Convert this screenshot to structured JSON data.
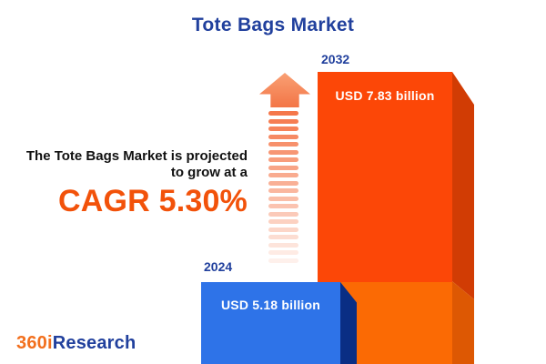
{
  "title": "Tote Bags Market",
  "projection": {
    "line1": "The Tote Bags Market is projected",
    "line2": "to grow at a",
    "cagr": "CAGR 5.30%"
  },
  "bars": [
    {
      "year": "2024",
      "value": "USD 5.18 billion"
    },
    {
      "year": "2032",
      "value": "USD 7.83 billion"
    }
  ],
  "logo": {
    "prefix": "360i",
    "suffix": "Research"
  },
  "arrow": {
    "stripe_count": 20
  },
  "colors": {
    "title_navy": "#21409d",
    "text_dark": "#111111",
    "cagr_orange": "#f2520a",
    "bar_2024": "#2e73e8",
    "bar_2024_side": "#0a2e84",
    "bar_2032_top": "#fc4707",
    "bar_2032_top_side": "#d13c04",
    "bar_2032_bottom": "#fb6a04",
    "bar_2032_bottom_side": "#dd5803",
    "arrow": "#f5774a",
    "logo_orange": "#f26f1d"
  },
  "chart_data": {
    "type": "bar",
    "title": "Tote Bags Market",
    "categories": [
      "2024",
      "2032"
    ],
    "values": [
      5.18,
      7.83
    ],
    "unit": "USD billion",
    "data_labels": [
      "USD 5.18 billion",
      "USD 7.83 billion"
    ],
    "cagr_percent": 5.3,
    "annotation": "The Tote Bags Market is projected to grow at a CAGR 5.30%",
    "legend_position": "none",
    "grid": false,
    "axes_shown": false
  }
}
